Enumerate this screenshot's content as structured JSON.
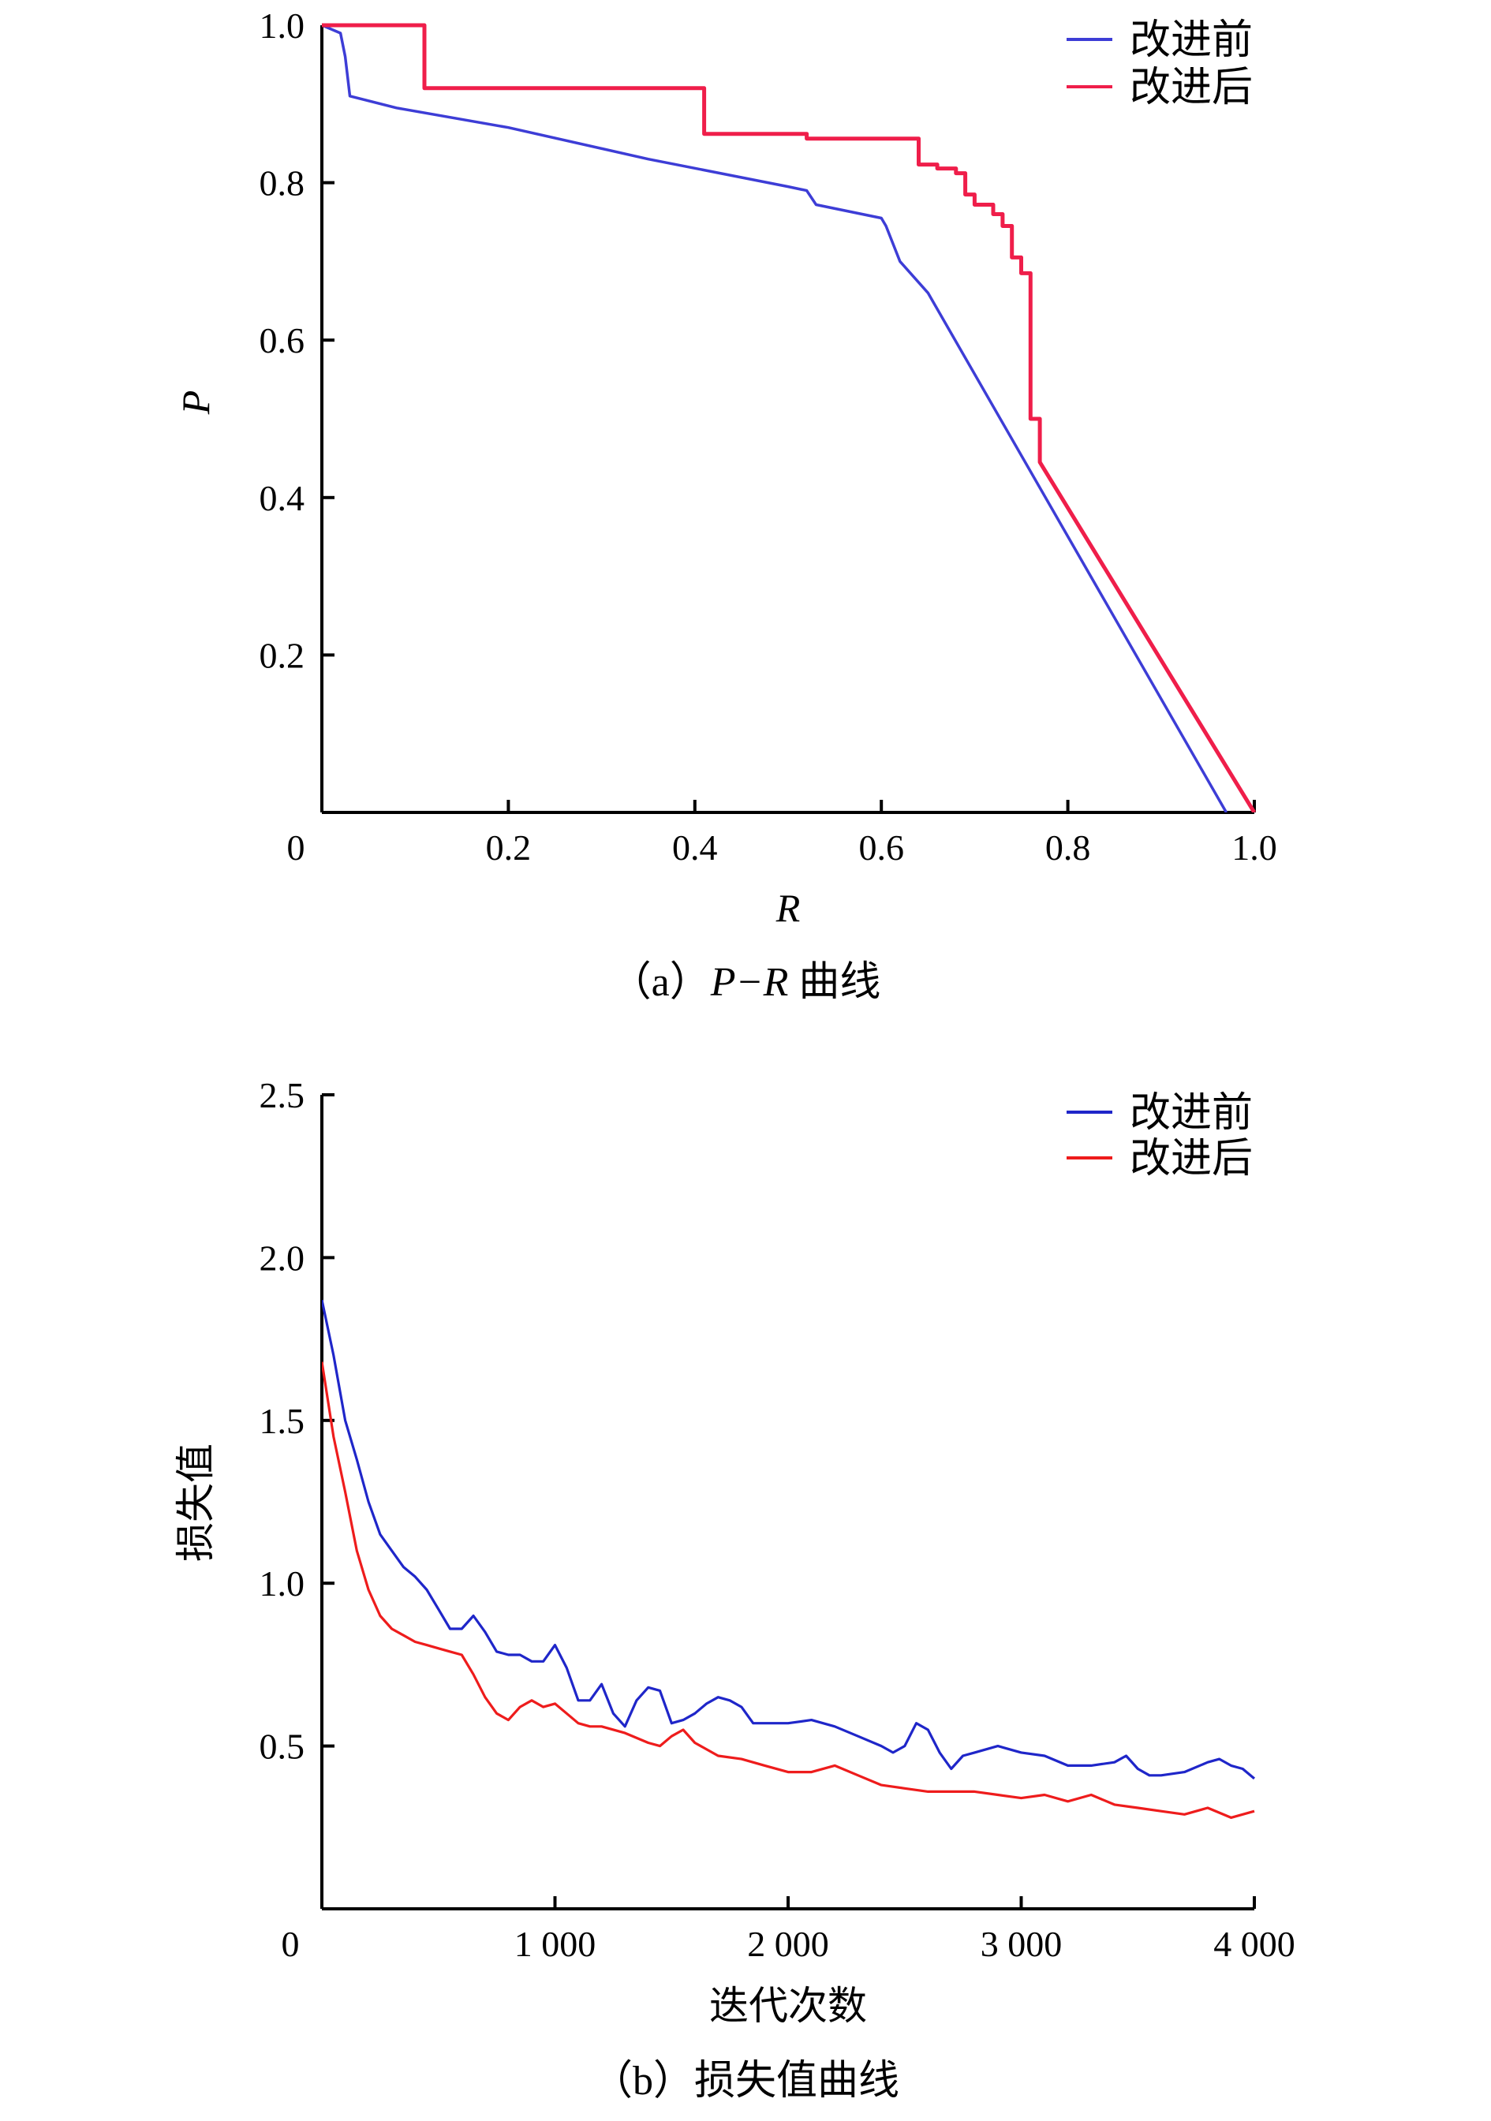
{
  "chart_data": [
    {
      "type": "line",
      "panel": "a",
      "caption": {
        "prefix": "（a）",
        "italic": "P−R",
        "suffix": " 曲线"
      },
      "xlabel": "R",
      "ylabel": "P",
      "xlim": [
        0,
        1.0
      ],
      "ylim": [
        0,
        1.0
      ],
      "xticks": [
        0,
        0.2,
        0.4,
        0.6,
        0.8,
        1.0
      ],
      "xtick_labels": [
        "0",
        "0.2",
        "0.4",
        "0.6",
        "0.8",
        "1.0"
      ],
      "yticks": [
        0.2,
        0.4,
        0.6,
        0.8,
        1.0
      ],
      "ytick_labels": [
        "0.2",
        "0.4",
        "0.6",
        "0.8",
        "1.0"
      ],
      "grid": false,
      "legend_position": "top-right",
      "series": [
        {
          "name": "改进前",
          "color": "#3d3dd6",
          "x": [
            0.0,
            0.02,
            0.025,
            0.03,
            0.08,
            0.2,
            0.35,
            0.5,
            0.52,
            0.53,
            0.6,
            0.605,
            0.62,
            0.65,
            0.97
          ],
          "y": [
            1.0,
            0.99,
            0.96,
            0.91,
            0.895,
            0.87,
            0.83,
            0.795,
            0.79,
            0.772,
            0.755,
            0.745,
            0.7,
            0.66,
            0.0
          ]
        },
        {
          "name": "改进后",
          "color": "#ef1e4a",
          "x": [
            0.0,
            0.11,
            0.11,
            0.41,
            0.41,
            0.52,
            0.52,
            0.64,
            0.64,
            0.66,
            0.66,
            0.68,
            0.68,
            0.69,
            0.69,
            0.7,
            0.7,
            0.72,
            0.72,
            0.73,
            0.73,
            0.74,
            0.74,
            0.75,
            0.75,
            0.76,
            0.76,
            0.77,
            0.77,
            1.0
          ],
          "y": [
            1.0,
            1.0,
            0.92,
            0.92,
            0.862,
            0.862,
            0.856,
            0.856,
            0.823,
            0.823,
            0.818,
            0.818,
            0.812,
            0.812,
            0.785,
            0.785,
            0.772,
            0.772,
            0.76,
            0.76,
            0.745,
            0.745,
            0.705,
            0.705,
            0.685,
            0.685,
            0.5,
            0.5,
            0.445,
            0.0
          ]
        }
      ]
    },
    {
      "type": "line",
      "panel": "b",
      "caption": {
        "prefix": "（b）",
        "italic": "",
        "suffix": "损失值曲线"
      },
      "xlabel": "迭代次数",
      "ylabel": "损失值",
      "xlim": [
        0,
        4000
      ],
      "ylim": [
        0,
        2.5
      ],
      "xticks": [
        0,
        1000,
        2000,
        3000,
        4000
      ],
      "xtick_labels": [
        "0",
        "1 000",
        "2 000",
        "3 000",
        "4 000"
      ],
      "yticks": [
        0.5,
        1.0,
        1.5,
        2.0,
        2.5
      ],
      "ytick_labels": [
        "0.5",
        "1.0",
        "1.5",
        "2.0",
        "2.5"
      ],
      "grid": false,
      "legend_position": "top-right",
      "series": [
        {
          "name": "改进前",
          "color": "#1f26c9",
          "x": [
            0,
            50,
            100,
            150,
            200,
            250,
            300,
            350,
            400,
            450,
            500,
            550,
            600,
            650,
            700,
            750,
            800,
            850,
            900,
            950,
            1000,
            1050,
            1100,
            1150,
            1200,
            1250,
            1300,
            1350,
            1400,
            1450,
            1500,
            1550,
            1600,
            1650,
            1700,
            1750,
            1800,
            1850,
            1900,
            1950,
            2000,
            2100,
            2200,
            2300,
            2400,
            2450,
            2500,
            2550,
            2600,
            2650,
            2700,
            2750,
            2800,
            2900,
            3000,
            3100,
            3200,
            3300,
            3400,
            3450,
            3500,
            3550,
            3600,
            3700,
            3800,
            3850,
            3900,
            3950,
            4000
          ],
          "y": [
            1.87,
            1.7,
            1.5,
            1.38,
            1.25,
            1.15,
            1.1,
            1.05,
            1.02,
            0.98,
            0.92,
            0.86,
            0.86,
            0.9,
            0.85,
            0.79,
            0.78,
            0.78,
            0.76,
            0.76,
            0.81,
            0.74,
            0.64,
            0.64,
            0.69,
            0.6,
            0.56,
            0.64,
            0.68,
            0.67,
            0.57,
            0.58,
            0.6,
            0.63,
            0.65,
            0.64,
            0.62,
            0.57,
            0.57,
            0.57,
            0.57,
            0.58,
            0.56,
            0.53,
            0.5,
            0.48,
            0.5,
            0.57,
            0.55,
            0.48,
            0.43,
            0.47,
            0.48,
            0.5,
            0.48,
            0.47,
            0.44,
            0.44,
            0.45,
            0.47,
            0.43,
            0.41,
            0.41,
            0.42,
            0.45,
            0.46,
            0.44,
            0.43,
            0.4
          ]
        },
        {
          "name": "改进后",
          "color": "#ee1c1c",
          "x": [
            0,
            50,
            100,
            150,
            200,
            250,
            300,
            350,
            400,
            450,
            500,
            550,
            600,
            650,
            700,
            750,
            800,
            850,
            900,
            950,
            1000,
            1050,
            1100,
            1150,
            1200,
            1300,
            1400,
            1450,
            1500,
            1550,
            1600,
            1700,
            1800,
            1900,
            2000,
            2100,
            2200,
            2300,
            2400,
            2500,
            2600,
            2700,
            2800,
            2900,
            3000,
            3100,
            3200,
            3300,
            3400,
            3500,
            3600,
            3700,
            3800,
            3900,
            4000
          ],
          "y": [
            1.68,
            1.45,
            1.28,
            1.1,
            0.98,
            0.9,
            0.86,
            0.84,
            0.82,
            0.81,
            0.8,
            0.79,
            0.78,
            0.72,
            0.65,
            0.6,
            0.58,
            0.62,
            0.64,
            0.62,
            0.63,
            0.6,
            0.57,
            0.56,
            0.56,
            0.54,
            0.51,
            0.5,
            0.53,
            0.55,
            0.51,
            0.47,
            0.46,
            0.44,
            0.42,
            0.42,
            0.44,
            0.41,
            0.38,
            0.37,
            0.36,
            0.36,
            0.36,
            0.35,
            0.34,
            0.35,
            0.33,
            0.35,
            0.32,
            0.31,
            0.3,
            0.29,
            0.31,
            0.28,
            0.3
          ]
        }
      ]
    }
  ]
}
